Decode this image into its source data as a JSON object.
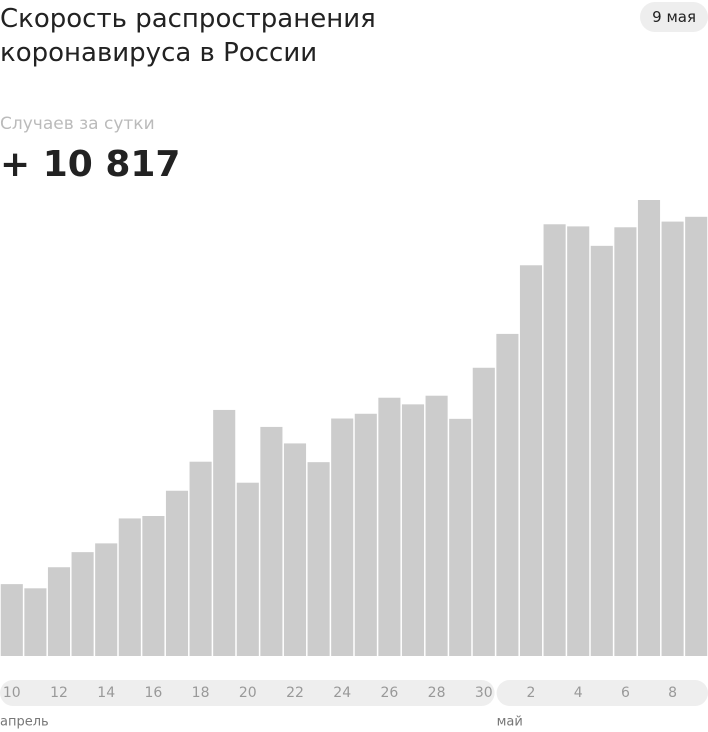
{
  "chart_data": {
    "type": "bar",
    "title": "Скорость распространения коронавируса в России",
    "date": "9 мая",
    "subtitle": "Случаев за сутки",
    "categories": [
      "10",
      null,
      "12",
      null,
      "14",
      null,
      "16",
      null,
      "18",
      null,
      "20",
      null,
      "22",
      null,
      "24",
      null,
      "26",
      null,
      "28",
      null,
      "30",
      null,
      "2",
      null,
      "4",
      null,
      "6",
      null,
      "8",
      null
    ],
    "values": [
      1770,
      1667,
      2186,
      2558,
      2774,
      3388,
      3448,
      4070,
      4785,
      6060,
      4268,
      5642,
      5236,
      4774,
      5849,
      5966,
      6361,
      6198,
      6411,
      5841,
      7099,
      7933,
      9623,
      10633,
      10581,
      10102,
      10559,
      11231,
      10699,
      10817
    ],
    "value_labels": [
      null,
      null,
      null,
      null,
      null,
      null,
      null,
      null,
      null,
      null,
      null,
      null,
      null,
      null,
      null,
      null,
      null,
      null,
      null,
      null,
      null,
      null,
      null,
      null,
      null,
      null,
      null,
      null,
      null,
      "+ 10 817"
    ],
    "color": "#cccccc",
    "groups": [
      {
        "label": "апрель",
        "start": 0
      },
      {
        "label": "май",
        "start": 21
      }
    ]
  }
}
